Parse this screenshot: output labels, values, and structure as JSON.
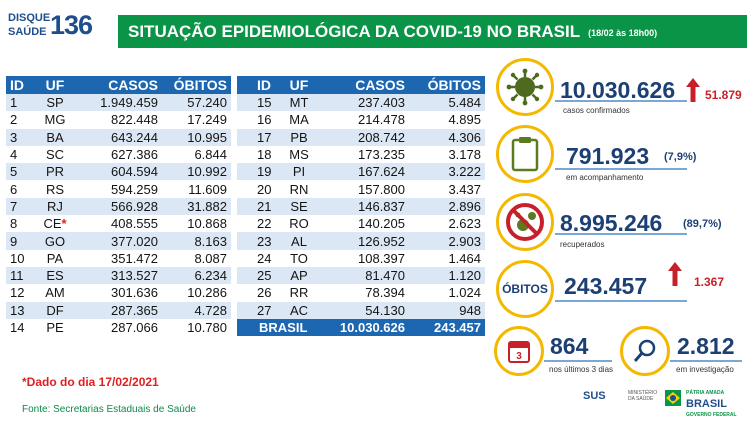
{
  "header": {
    "logo_word1": "DISQUE",
    "logo_word2": "SAÚDE",
    "logo_number": "136",
    "title": "SITUAÇÃO EPIDEMIOLÓGICA DA COVID-19 NO BRASIL",
    "date": "(18/02 às 18h00)"
  },
  "table": {
    "columns": [
      "ID",
      "UF",
      "CASOS",
      "ÓBITOS"
    ],
    "left_rows": [
      {
        "id": "1",
        "uf": "SP",
        "casos": "1.949.459",
        "obitos": "57.240"
      },
      {
        "id": "2",
        "uf": "MG",
        "casos": "822.448",
        "obitos": "17.249"
      },
      {
        "id": "3",
        "uf": "BA",
        "casos": "643.244",
        "obitos": "10.995"
      },
      {
        "id": "4",
        "uf": "SC",
        "casos": "627.386",
        "obitos": "6.844"
      },
      {
        "id": "5",
        "uf": "PR",
        "casos": "604.594",
        "obitos": "10.992"
      },
      {
        "id": "6",
        "uf": "RS",
        "casos": "594.259",
        "obitos": "11.609"
      },
      {
        "id": "7",
        "uf": "RJ",
        "casos": "566.928",
        "obitos": "31.882"
      },
      {
        "id": "8",
        "uf": "CE",
        "casos": "408.555",
        "obitos": "10.868"
      },
      {
        "id": "9",
        "uf": "GO",
        "casos": "377.020",
        "obitos": "8.163"
      },
      {
        "id": "10",
        "uf": "PA",
        "casos": "351.472",
        "obitos": "8.087"
      },
      {
        "id": "11",
        "uf": "ES",
        "casos": "313.527",
        "obitos": "6.234"
      },
      {
        "id": "12",
        "uf": "AM",
        "casos": "301.636",
        "obitos": "10.286"
      },
      {
        "id": "13",
        "uf": "DF",
        "casos": "287.365",
        "obitos": "4.728"
      },
      {
        "id": "14",
        "uf": "PE",
        "casos": "287.066",
        "obitos": "10.780"
      }
    ],
    "ce_marker": "*",
    "right_rows": [
      {
        "id": "15",
        "uf": "MT",
        "casos": "237.403",
        "obitos": "5.484"
      },
      {
        "id": "16",
        "uf": "MA",
        "casos": "214.478",
        "obitos": "4.895"
      },
      {
        "id": "17",
        "uf": "PB",
        "casos": "208.742",
        "obitos": "4.306"
      },
      {
        "id": "18",
        "uf": "MS",
        "casos": "173.235",
        "obitos": "3.178"
      },
      {
        "id": "19",
        "uf": "PI",
        "casos": "167.624",
        "obitos": "3.222"
      },
      {
        "id": "20",
        "uf": "RN",
        "casos": "157.800",
        "obitos": "3.437"
      },
      {
        "id": "21",
        "uf": "SE",
        "casos": "146.837",
        "obitos": "2.896"
      },
      {
        "id": "22",
        "uf": "RO",
        "casos": "140.205",
        "obitos": "2.623"
      },
      {
        "id": "23",
        "uf": "AL",
        "casos": "126.952",
        "obitos": "2.903"
      },
      {
        "id": "24",
        "uf": "TO",
        "casos": "108.397",
        "obitos": "1.464"
      },
      {
        "id": "25",
        "uf": "AP",
        "casos": "81.470",
        "obitos": "1.120"
      },
      {
        "id": "26",
        "uf": "RR",
        "casos": "78.394",
        "obitos": "1.024"
      },
      {
        "id": "27",
        "uf": "AC",
        "casos": "54.130",
        "obitos": "948"
      }
    ],
    "total": {
      "label": "BRASIL",
      "casos": "10.030.626",
      "obitos": "243.457"
    }
  },
  "stats": {
    "confirmados": {
      "value": "10.030.626",
      "delta": "51.879",
      "caption": "casos confirmados",
      "icon": "virus-icon"
    },
    "acompanhamento": {
      "value": "791.923",
      "pct": "(7,9%)",
      "caption": "em acompanhamento",
      "icon": "clipboard-icon"
    },
    "recuperados": {
      "value": "8.995.246",
      "pct": "(89,7%)",
      "caption": "recuperados",
      "icon": "no-virus-icon"
    },
    "obitos": {
      "label": "ÓBITOS",
      "value": "243.457",
      "delta": "1.367"
    },
    "ultimos": {
      "value": "864",
      "caption": "nos últimos 3 dias",
      "icon_text": "3",
      "icon": "calendar-icon"
    },
    "investigacao": {
      "value": "2.812",
      "caption": "em investigação",
      "icon": "magnifier-icon"
    }
  },
  "footer": {
    "note": "*Dado do dia 17/02/2021",
    "source": "Fonte: Secretarias Estaduais de Saúde",
    "sus": "SUS",
    "ministerio": "MINISTÉRIO DA SAÚDE",
    "brasil_small": "PÁTRIA AMADA",
    "brasil_big": "BRASIL",
    "brasil_sub": "GOVERNO FEDERAL"
  },
  "colors": {
    "title_bg": "#0a9447",
    "table_header": "#1d66b0",
    "row_alt": "#dbe7f4",
    "accent_yellow": "#f5b800",
    "alert_red": "#c8202a"
  }
}
